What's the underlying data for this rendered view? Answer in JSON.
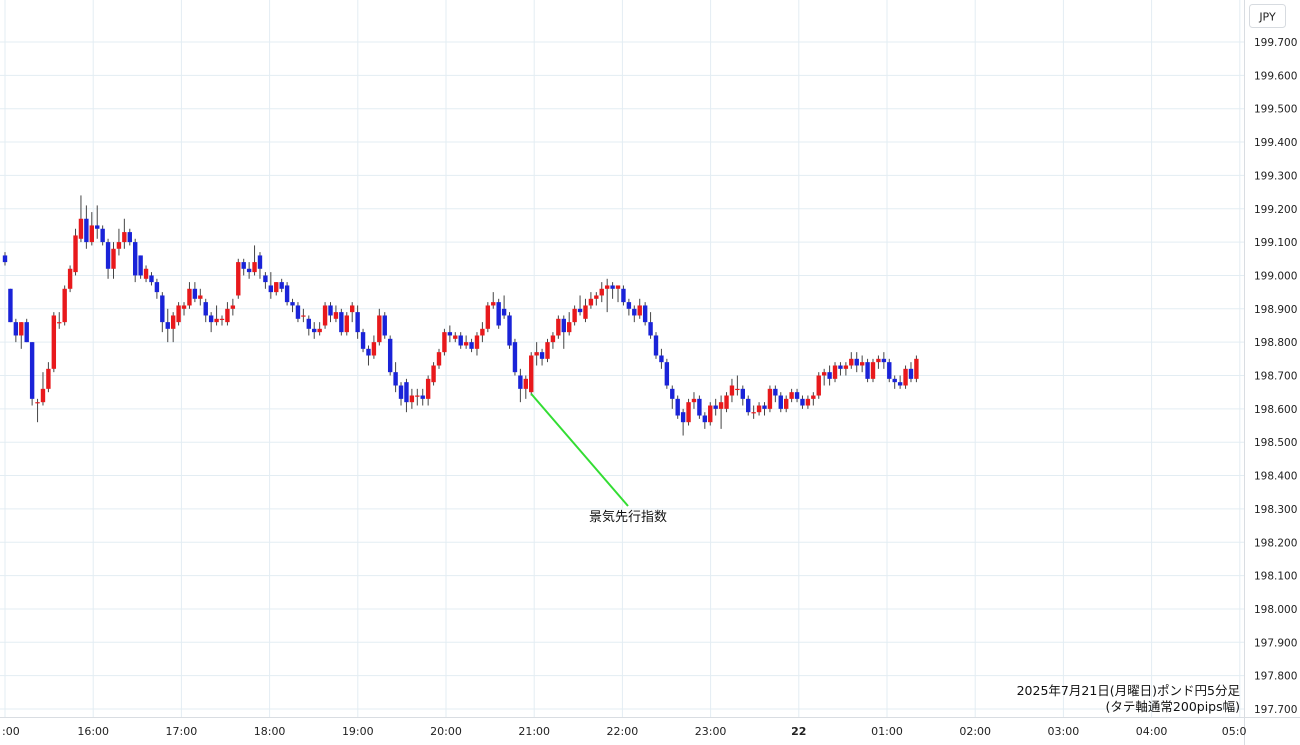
{
  "chart_data": {
    "type": "candlestick",
    "currency_label": "JPY",
    "caption_line1": "2025年7月21日(月曜日)ポンド円5分足",
    "caption_line2": "(タテ軸通常200pips幅)",
    "annotation": "景気先行指数",
    "y_ticks": [
      "199.700",
      "199.600",
      "199.500",
      "199.400",
      "199.300",
      "199.200",
      "199.100",
      "199.000",
      "198.900",
      "198.800",
      "198.700",
      "198.600",
      "198.500",
      "198.400",
      "198.300",
      "198.200",
      "198.100",
      "198.000",
      "197.900",
      "197.800",
      "197.700"
    ],
    "x_ticks": [
      ":00",
      "16:00",
      "17:00",
      "18:00",
      "19:00",
      "20:00",
      "21:00",
      "22:00",
      "23:00",
      "22",
      "01:00",
      "02:00",
      "03:00",
      "04:00",
      "05:0"
    ],
    "ylim": [
      197.7,
      199.7
    ],
    "grid": true,
    "colors": {
      "up": "#e8191c",
      "down": "#1a23d8",
      "grid": "#e3edf3",
      "annotation_line": "#33dd33"
    },
    "candles": [
      [
        199.06,
        199.07,
        199.03,
        199.04
      ],
      [
        198.96,
        198.96,
        198.86,
        198.86
      ],
      [
        198.86,
        198.87,
        198.8,
        198.82
      ],
      [
        198.82,
        198.86,
        198.78,
        198.86
      ],
      [
        198.86,
        198.87,
        198.8,
        198.8
      ],
      [
        198.8,
        198.8,
        198.61,
        198.63
      ],
      [
        198.62,
        198.63,
        198.56,
        198.62
      ],
      [
        198.62,
        198.71,
        198.61,
        198.66
      ],
      [
        198.66,
        198.74,
        198.65,
        198.72
      ],
      [
        198.72,
        198.89,
        198.71,
        198.88
      ],
      [
        198.86,
        198.89,
        198.84,
        198.86
      ],
      [
        198.86,
        198.97,
        198.85,
        198.96
      ],
      [
        198.96,
        199.03,
        198.95,
        199.02
      ],
      [
        199.01,
        199.14,
        199.0,
        199.12
      ],
      [
        199.11,
        199.24,
        199.1,
        199.17
      ],
      [
        199.17,
        199.21,
        199.08,
        199.1
      ],
      [
        199.1,
        199.19,
        199.09,
        199.15
      ],
      [
        199.15,
        199.21,
        199.11,
        199.14
      ],
      [
        199.14,
        199.15,
        199.09,
        199.1
      ],
      [
        199.1,
        199.11,
        198.99,
        199.02
      ],
      [
        199.02,
        199.1,
        198.99,
        199.08
      ],
      [
        199.08,
        199.14,
        199.06,
        199.1
      ],
      [
        199.1,
        199.17,
        199.08,
        199.13
      ],
      [
        199.13,
        199.14,
        199.09,
        199.1
      ],
      [
        199.1,
        199.11,
        198.98,
        199.0
      ],
      [
        199.06,
        199.06,
        198.99,
        199.0
      ],
      [
        198.99,
        199.03,
        198.98,
        199.02
      ],
      [
        199.0,
        199.01,
        198.97,
        198.98
      ],
      [
        198.98,
        198.99,
        198.93,
        198.95
      ],
      [
        198.94,
        198.95,
        198.83,
        198.86
      ],
      [
        198.86,
        198.9,
        198.8,
        198.84
      ],
      [
        198.84,
        198.89,
        198.8,
        198.88
      ],
      [
        198.86,
        198.92,
        198.85,
        198.91
      ],
      [
        198.9,
        198.92,
        198.88,
        198.91
      ],
      [
        198.91,
        198.98,
        198.9,
        198.96
      ],
      [
        198.96,
        198.98,
        198.92,
        198.93
      ],
      [
        198.93,
        198.96,
        198.91,
        198.94
      ],
      [
        198.92,
        198.93,
        198.86,
        198.88
      ],
      [
        198.88,
        198.89,
        198.83,
        198.86
      ],
      [
        198.86,
        198.91,
        198.85,
        198.87
      ],
      [
        198.87,
        198.88,
        198.85,
        198.87
      ],
      [
        198.86,
        198.92,
        198.85,
        198.9
      ],
      [
        198.9,
        198.93,
        198.88,
        198.91
      ],
      [
        198.94,
        199.05,
        198.93,
        199.04
      ],
      [
        199.04,
        199.05,
        199.0,
        199.02
      ],
      [
        199.02,
        199.04,
        198.99,
        199.01
      ],
      [
        199.01,
        199.09,
        199.0,
        199.04
      ],
      [
        199.06,
        199.07,
        198.99,
        199.02
      ],
      [
        199.0,
        199.01,
        198.96,
        198.98
      ],
      [
        198.97,
        199.01,
        198.93,
        198.95
      ],
      [
        198.95,
        198.98,
        198.94,
        198.98
      ],
      [
        198.98,
        198.99,
        198.95,
        198.96
      ],
      [
        198.97,
        198.98,
        198.91,
        198.92
      ],
      [
        198.92,
        198.93,
        198.89,
        198.91
      ],
      [
        198.91,
        198.92,
        198.86,
        198.87
      ],
      [
        198.88,
        198.9,
        198.86,
        198.88
      ],
      [
        198.87,
        198.88,
        198.82,
        198.84
      ],
      [
        198.84,
        198.86,
        198.81,
        198.83
      ],
      [
        198.83,
        198.86,
        198.82,
        198.84
      ],
      [
        198.85,
        198.92,
        198.84,
        198.91
      ],
      [
        198.91,
        198.92,
        198.86,
        198.88
      ],
      [
        198.87,
        198.91,
        198.86,
        198.89
      ],
      [
        198.89,
        198.9,
        198.82,
        198.83
      ],
      [
        198.83,
        198.89,
        198.82,
        198.88
      ],
      [
        198.89,
        198.92,
        198.86,
        198.91
      ],
      [
        198.89,
        198.91,
        198.81,
        198.83
      ],
      [
        198.83,
        198.84,
        198.77,
        198.78
      ],
      [
        198.78,
        198.79,
        198.73,
        198.76
      ],
      [
        198.76,
        198.82,
        198.75,
        198.8
      ],
      [
        198.8,
        198.9,
        198.79,
        198.88
      ],
      [
        198.88,
        198.89,
        198.81,
        198.82
      ],
      [
        198.81,
        198.82,
        198.7,
        198.71
      ],
      [
        198.71,
        198.74,
        198.65,
        198.67
      ],
      [
        198.67,
        198.68,
        198.61,
        198.63
      ],
      [
        198.68,
        198.69,
        198.59,
        198.62
      ],
      [
        198.62,
        198.66,
        198.6,
        198.64
      ],
      [
        198.64,
        198.66,
        198.61,
        198.64
      ],
      [
        198.64,
        198.66,
        198.61,
        198.63
      ],
      [
        198.63,
        198.7,
        198.61,
        198.69
      ],
      [
        198.68,
        198.74,
        198.67,
        198.73
      ],
      [
        198.73,
        198.78,
        198.72,
        198.77
      ],
      [
        198.77,
        198.84,
        198.76,
        198.83
      ],
      [
        198.83,
        198.85,
        198.8,
        198.82
      ],
      [
        198.81,
        198.83,
        198.8,
        198.82
      ],
      [
        198.82,
        198.83,
        198.78,
        198.79
      ],
      [
        198.79,
        198.82,
        198.78,
        198.8
      ],
      [
        198.8,
        198.81,
        198.77,
        198.78
      ],
      [
        198.78,
        198.83,
        198.76,
        198.82
      ],
      [
        198.82,
        198.86,
        198.8,
        198.84
      ],
      [
        198.84,
        198.92,
        198.83,
        198.91
      ],
      [
        198.91,
        198.95,
        198.9,
        198.92
      ],
      [
        198.92,
        198.93,
        198.84,
        198.85
      ],
      [
        198.9,
        198.94,
        198.87,
        198.88
      ],
      [
        198.88,
        198.89,
        198.78,
        198.79
      ],
      [
        198.8,
        198.81,
        198.7,
        198.71
      ],
      [
        198.7,
        198.72,
        198.62,
        198.66
      ],
      [
        198.66,
        198.7,
        198.63,
        198.69
      ],
      [
        198.65,
        198.77,
        198.64,
        198.76
      ],
      [
        198.76,
        198.8,
        198.73,
        198.77
      ],
      [
        198.77,
        198.78,
        198.73,
        198.75
      ],
      [
        198.75,
        198.81,
        198.74,
        198.8
      ],
      [
        198.8,
        198.83,
        198.78,
        198.82
      ],
      [
        198.82,
        198.88,
        198.81,
        198.87
      ],
      [
        198.87,
        198.88,
        198.78,
        198.83
      ],
      [
        198.83,
        198.89,
        198.82,
        198.86
      ],
      [
        198.86,
        198.91,
        198.85,
        198.9
      ],
      [
        198.9,
        198.94,
        198.88,
        198.89
      ],
      [
        198.87,
        198.93,
        198.86,
        198.91
      ],
      [
        198.91,
        198.95,
        198.9,
        198.93
      ],
      [
        198.93,
        198.95,
        198.91,
        198.94
      ],
      [
        198.94,
        198.98,
        198.92,
        198.96
      ],
      [
        198.96,
        198.99,
        198.89,
        198.97
      ],
      [
        198.97,
        198.98,
        198.93,
        198.96
      ],
      [
        198.96,
        198.97,
        198.92,
        198.97
      ],
      [
        198.96,
        198.97,
        198.91,
        198.92
      ],
      [
        198.92,
        198.93,
        198.88,
        198.9
      ],
      [
        198.9,
        198.91,
        198.86,
        198.88
      ],
      [
        198.88,
        198.93,
        198.87,
        198.91
      ],
      [
        198.91,
        198.92,
        198.85,
        198.86
      ],
      [
        198.86,
        198.89,
        198.81,
        198.82
      ],
      [
        198.82,
        198.83,
        198.75,
        198.76
      ],
      [
        198.76,
        198.78,
        198.72,
        198.74
      ],
      [
        198.74,
        198.75,
        198.66,
        198.67
      ],
      [
        198.66,
        198.67,
        198.6,
        198.63
      ],
      [
        198.63,
        198.64,
        198.57,
        198.58
      ],
      [
        198.59,
        198.6,
        198.52,
        198.56
      ],
      [
        198.56,
        198.63,
        198.55,
        198.62
      ],
      [
        198.62,
        198.65,
        198.6,
        198.63
      ],
      [
        198.63,
        198.64,
        198.57,
        198.58
      ],
      [
        198.58,
        198.59,
        198.54,
        198.56
      ],
      [
        198.56,
        198.62,
        198.55,
        198.61
      ],
      [
        198.61,
        198.63,
        198.58,
        198.6
      ],
      [
        198.6,
        198.64,
        198.54,
        198.62
      ],
      [
        198.6,
        198.65,
        198.59,
        198.64
      ],
      [
        198.64,
        198.69,
        198.62,
        198.67
      ],
      [
        198.66,
        198.7,
        198.64,
        198.66
      ],
      [
        198.66,
        198.67,
        198.61,
        198.63
      ],
      [
        198.63,
        198.64,
        198.58,
        198.59
      ],
      [
        198.59,
        198.61,
        198.57,
        198.59
      ],
      [
        198.59,
        198.62,
        198.58,
        198.61
      ],
      [
        198.61,
        198.62,
        198.58,
        198.6
      ],
      [
        198.6,
        198.67,
        198.59,
        198.66
      ],
      [
        198.66,
        198.67,
        198.62,
        198.64
      ],
      [
        198.64,
        198.65,
        198.59,
        198.6
      ],
      [
        198.6,
        198.64,
        198.59,
        198.63
      ],
      [
        198.63,
        198.66,
        198.62,
        198.65
      ],
      [
        198.65,
        198.66,
        198.62,
        198.63
      ],
      [
        198.63,
        198.64,
        198.6,
        198.61
      ],
      [
        198.61,
        198.64,
        198.6,
        198.63
      ],
      [
        198.63,
        198.65,
        198.61,
        198.64
      ],
      [
        198.64,
        198.71,
        198.63,
        198.7
      ],
      [
        198.7,
        198.72,
        198.67,
        198.71
      ],
      [
        198.71,
        198.73,
        198.67,
        198.69
      ],
      [
        198.69,
        198.74,
        198.68,
        198.73
      ],
      [
        198.73,
        198.74,
        198.7,
        198.72
      ],
      [
        198.72,
        198.74,
        198.7,
        198.73
      ],
      [
        198.73,
        198.77,
        198.72,
        198.75
      ],
      [
        198.75,
        198.77,
        198.71,
        198.73
      ],
      [
        198.73,
        198.76,
        198.71,
        198.74
      ],
      [
        198.74,
        198.75,
        198.68,
        198.69
      ],
      [
        198.69,
        198.75,
        198.68,
        198.74
      ],
      [
        198.74,
        198.76,
        198.72,
        198.75
      ],
      [
        198.75,
        198.77,
        198.72,
        198.74
      ],
      [
        198.74,
        198.75,
        198.68,
        198.69
      ],
      [
        198.69,
        198.7,
        198.66,
        198.68
      ],
      [
        198.68,
        198.7,
        198.66,
        198.67
      ],
      [
        198.67,
        198.73,
        198.66,
        198.72
      ],
      [
        198.72,
        198.74,
        198.68,
        198.69
      ],
      [
        198.69,
        198.76,
        198.68,
        198.75
      ]
    ]
  }
}
